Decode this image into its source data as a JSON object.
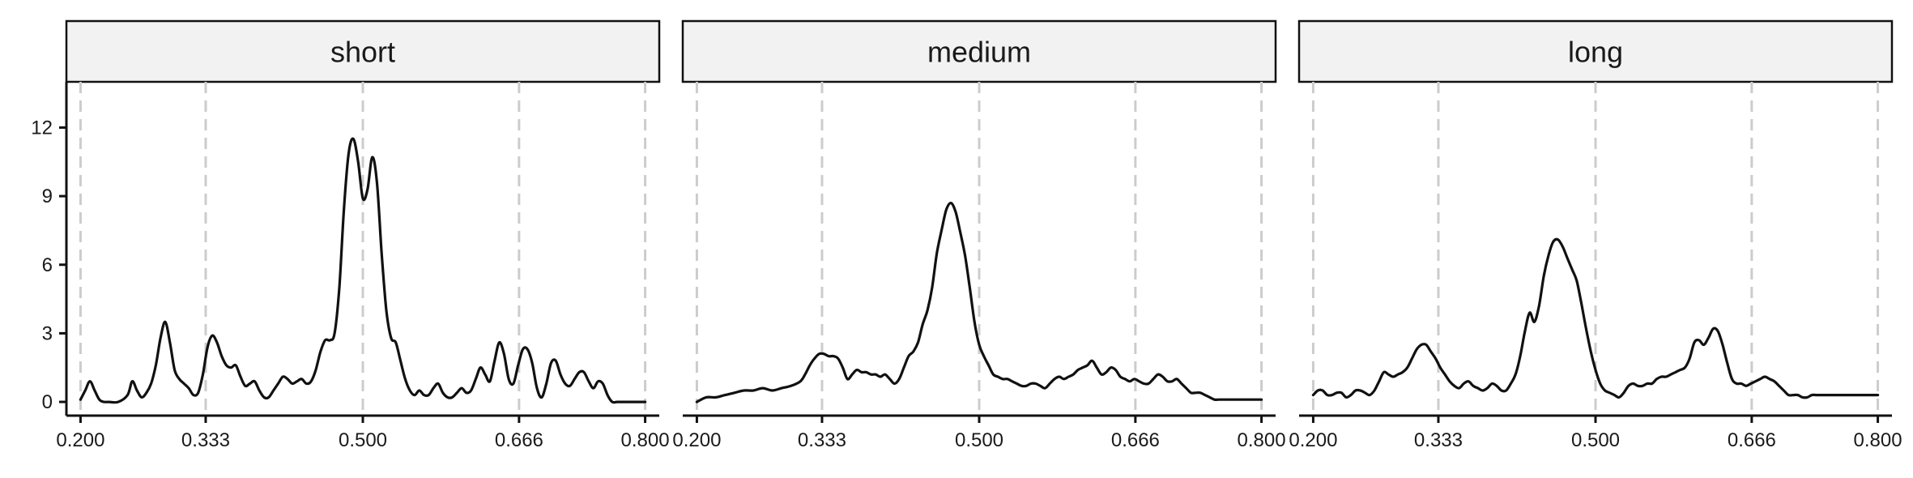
{
  "chart_data": {
    "type": "line",
    "y_ticks": [
      "0",
      "3",
      "6",
      "9",
      "12"
    ],
    "y_tick_values": [
      0,
      3,
      6,
      9,
      12
    ],
    "ylim": [
      -0.6,
      14.0
    ],
    "xlim": [
      0.185,
      0.815
    ],
    "x_tick_values": [
      0.2,
      0.333,
      0.5,
      0.666,
      0.8
    ],
    "x_ticks": [
      "0.200",
      "0.333",
      "0.500",
      "0.666",
      "0.800"
    ],
    "grid": "vertical dashed at x ticks",
    "colors": {
      "line": "#111111",
      "strip_fill": "#f2f2f2",
      "grid": "#cccccc"
    },
    "panels": [
      {
        "strip": "short",
        "x": [
          0.2,
          0.205,
          0.21,
          0.215,
          0.22,
          0.225,
          0.23,
          0.24,
          0.25,
          0.255,
          0.26,
          0.265,
          0.27,
          0.275,
          0.28,
          0.285,
          0.29,
          0.295,
          0.3,
          0.305,
          0.31,
          0.315,
          0.32,
          0.325,
          0.33,
          0.335,
          0.34,
          0.345,
          0.35,
          0.355,
          0.36,
          0.365,
          0.37,
          0.375,
          0.38,
          0.385,
          0.39,
          0.395,
          0.4,
          0.405,
          0.41,
          0.415,
          0.42,
          0.425,
          0.43,
          0.435,
          0.44,
          0.445,
          0.45,
          0.455,
          0.46,
          0.465,
          0.47,
          0.475,
          0.48,
          0.485,
          0.49,
          0.495,
          0.5,
          0.505,
          0.51,
          0.515,
          0.52,
          0.525,
          0.53,
          0.535,
          0.54,
          0.545,
          0.55,
          0.555,
          0.56,
          0.565,
          0.57,
          0.575,
          0.58,
          0.585,
          0.59,
          0.595,
          0.6,
          0.605,
          0.61,
          0.615,
          0.62,
          0.625,
          0.63,
          0.635,
          0.64,
          0.645,
          0.65,
          0.655,
          0.66,
          0.665,
          0.67,
          0.675,
          0.68,
          0.685,
          0.69,
          0.695,
          0.7,
          0.705,
          0.71,
          0.715,
          0.72,
          0.725,
          0.73,
          0.735,
          0.74,
          0.745,
          0.75,
          0.755,
          0.76,
          0.765,
          0.77,
          0.775,
          0.78,
          0.785,
          0.79,
          0.795,
          0.8
        ],
        "y": [
          0.1,
          0.5,
          0.9,
          0.5,
          0.1,
          0.0,
          0.0,
          0.0,
          0.3,
          0.9,
          0.5,
          0.2,
          0.4,
          0.8,
          1.6,
          2.8,
          3.5,
          2.6,
          1.4,
          1.0,
          0.8,
          0.6,
          0.3,
          0.4,
          1.2,
          2.4,
          2.9,
          2.6,
          2.0,
          1.6,
          1.5,
          1.6,
          1.1,
          0.7,
          0.8,
          0.9,
          0.5,
          0.2,
          0.2,
          0.5,
          0.8,
          1.1,
          1.0,
          0.8,
          0.9,
          1.0,
          0.8,
          0.9,
          1.4,
          2.2,
          2.7,
          2.7,
          3.0,
          5.0,
          8.5,
          10.9,
          11.5,
          10.5,
          8.9,
          9.3,
          10.7,
          9.6,
          6.5,
          4.0,
          2.8,
          2.6,
          1.8,
          1.0,
          0.5,
          0.3,
          0.5,
          0.3,
          0.3,
          0.6,
          0.8,
          0.4,
          0.2,
          0.2,
          0.4,
          0.6,
          0.4,
          0.5,
          1.0,
          1.5,
          1.2,
          0.9,
          1.8,
          2.6,
          2.1,
          1.0,
          0.8,
          1.6,
          2.3,
          2.3,
          1.7,
          0.6,
          0.2,
          0.8,
          1.7,
          1.8,
          1.2,
          0.8,
          0.7,
          1.0,
          1.3,
          1.3,
          0.9,
          0.6,
          0.9,
          0.8,
          0.3,
          0.0,
          0.0,
          0.0,
          0.0,
          0.0,
          0.0,
          0.0,
          0.0
        ]
      },
      {
        "strip": "medium",
        "x": [
          0.2,
          0.21,
          0.22,
          0.23,
          0.24,
          0.25,
          0.26,
          0.27,
          0.28,
          0.29,
          0.3,
          0.31,
          0.315,
          0.32,
          0.325,
          0.33,
          0.335,
          0.34,
          0.345,
          0.35,
          0.355,
          0.36,
          0.365,
          0.37,
          0.375,
          0.38,
          0.385,
          0.39,
          0.395,
          0.4,
          0.405,
          0.41,
          0.415,
          0.42,
          0.425,
          0.43,
          0.435,
          0.44,
          0.445,
          0.45,
          0.455,
          0.46,
          0.465,
          0.47,
          0.475,
          0.48,
          0.485,
          0.49,
          0.495,
          0.5,
          0.505,
          0.51,
          0.515,
          0.52,
          0.525,
          0.53,
          0.535,
          0.54,
          0.545,
          0.55,
          0.555,
          0.56,
          0.565,
          0.57,
          0.575,
          0.58,
          0.585,
          0.59,
          0.595,
          0.6,
          0.605,
          0.61,
          0.615,
          0.62,
          0.625,
          0.63,
          0.635,
          0.64,
          0.645,
          0.65,
          0.655,
          0.66,
          0.665,
          0.67,
          0.675,
          0.68,
          0.685,
          0.69,
          0.695,
          0.7,
          0.705,
          0.71,
          0.715,
          0.72,
          0.725,
          0.73,
          0.735,
          0.74,
          0.745,
          0.75,
          0.755,
          0.76,
          0.765,
          0.77,
          0.775,
          0.78,
          0.785,
          0.79,
          0.795,
          0.8
        ],
        "y": [
          0.0,
          0.2,
          0.2,
          0.3,
          0.4,
          0.5,
          0.5,
          0.6,
          0.5,
          0.6,
          0.7,
          0.9,
          1.2,
          1.6,
          1.9,
          2.1,
          2.1,
          2.0,
          2.0,
          1.9,
          1.5,
          1.0,
          1.2,
          1.4,
          1.3,
          1.3,
          1.2,
          1.2,
          1.1,
          1.2,
          1.0,
          0.8,
          1.0,
          1.5,
          2.0,
          2.2,
          2.6,
          3.4,
          4.0,
          5.0,
          6.5,
          7.5,
          8.4,
          8.7,
          8.3,
          7.4,
          6.4,
          5.0,
          3.5,
          2.5,
          2.0,
          1.6,
          1.2,
          1.1,
          1.0,
          1.0,
          0.9,
          0.8,
          0.7,
          0.7,
          0.8,
          0.8,
          0.7,
          0.6,
          0.8,
          1.0,
          1.1,
          1.0,
          1.1,
          1.2,
          1.4,
          1.5,
          1.6,
          1.8,
          1.5,
          1.2,
          1.3,
          1.5,
          1.4,
          1.1,
          1.0,
          0.9,
          1.0,
          0.9,
          0.8,
          0.8,
          1.0,
          1.2,
          1.1,
          0.9,
          0.9,
          1.0,
          0.8,
          0.6,
          0.4,
          0.4,
          0.4,
          0.3,
          0.2,
          0.1,
          0.1,
          0.1,
          0.1,
          0.1,
          0.1,
          0.1,
          0.1,
          0.1,
          0.1,
          0.1
        ]
      },
      {
        "strip": "long",
        "x": [
          0.2,
          0.205,
          0.21,
          0.215,
          0.22,
          0.225,
          0.23,
          0.235,
          0.24,
          0.245,
          0.25,
          0.255,
          0.26,
          0.265,
          0.27,
          0.275,
          0.28,
          0.285,
          0.29,
          0.295,
          0.3,
          0.305,
          0.31,
          0.315,
          0.32,
          0.325,
          0.33,
          0.335,
          0.34,
          0.345,
          0.35,
          0.355,
          0.36,
          0.365,
          0.37,
          0.375,
          0.38,
          0.385,
          0.39,
          0.395,
          0.4,
          0.405,
          0.41,
          0.415,
          0.42,
          0.425,
          0.43,
          0.435,
          0.44,
          0.445,
          0.45,
          0.455,
          0.46,
          0.465,
          0.47,
          0.475,
          0.48,
          0.485,
          0.49,
          0.495,
          0.5,
          0.505,
          0.51,
          0.515,
          0.52,
          0.525,
          0.53,
          0.535,
          0.54,
          0.545,
          0.55,
          0.555,
          0.56,
          0.565,
          0.57,
          0.575,
          0.58,
          0.585,
          0.59,
          0.595,
          0.6,
          0.605,
          0.61,
          0.615,
          0.62,
          0.625,
          0.63,
          0.635,
          0.64,
          0.645,
          0.65,
          0.655,
          0.66,
          0.665,
          0.67,
          0.675,
          0.68,
          0.685,
          0.69,
          0.695,
          0.7,
          0.705,
          0.71,
          0.715,
          0.72,
          0.725,
          0.73,
          0.735,
          0.74,
          0.745,
          0.75,
          0.755,
          0.76,
          0.765,
          0.77,
          0.775,
          0.78,
          0.785,
          0.79,
          0.795,
          0.8
        ],
        "y": [
          0.3,
          0.5,
          0.5,
          0.3,
          0.3,
          0.4,
          0.4,
          0.2,
          0.3,
          0.5,
          0.5,
          0.4,
          0.3,
          0.5,
          0.9,
          1.3,
          1.2,
          1.1,
          1.2,
          1.3,
          1.5,
          1.9,
          2.3,
          2.5,
          2.5,
          2.2,
          1.9,
          1.5,
          1.2,
          0.9,
          0.7,
          0.6,
          0.8,
          0.9,
          0.7,
          0.6,
          0.5,
          0.6,
          0.8,
          0.7,
          0.5,
          0.5,
          0.8,
          1.2,
          2.0,
          3.1,
          3.9,
          3.5,
          4.2,
          5.5,
          6.4,
          7.0,
          7.1,
          6.8,
          6.3,
          5.8,
          5.3,
          4.3,
          3.2,
          2.2,
          1.4,
          0.8,
          0.5,
          0.4,
          0.3,
          0.2,
          0.4,
          0.7,
          0.8,
          0.7,
          0.7,
          0.8,
          0.8,
          1.0,
          1.1,
          1.1,
          1.2,
          1.3,
          1.4,
          1.5,
          1.9,
          2.6,
          2.7,
          2.5,
          2.8,
          3.2,
          3.1,
          2.5,
          1.7,
          1.0,
          0.8,
          0.8,
          0.7,
          0.8,
          0.9,
          1.0,
          1.1,
          1.0,
          0.9,
          0.7,
          0.5,
          0.3,
          0.3,
          0.3,
          0.2,
          0.2,
          0.3,
          0.3,
          0.3,
          0.3,
          0.3,
          0.3,
          0.3,
          0.3,
          0.3,
          0.3,
          0.3,
          0.3,
          0.3,
          0.3,
          0.3
        ]
      }
    ]
  }
}
